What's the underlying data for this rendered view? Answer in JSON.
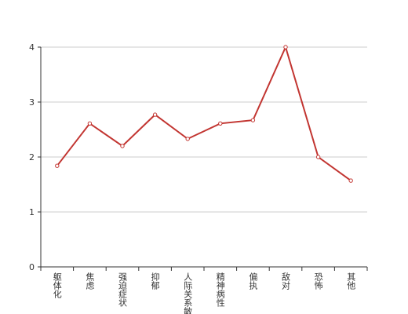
{
  "chart_data": {
    "type": "line",
    "categories": [
      "躯体化",
      "焦虑",
      "强迫症状",
      "抑郁",
      "人际关系敏感",
      "精神病性",
      "偏执",
      "敌对",
      "恐怖",
      "其他"
    ],
    "series": [
      {
        "color": "#c23531",
        "values": [
          1.84,
          2.61,
          2.2,
          2.77,
          2.33,
          2.61,
          2.67,
          4.0,
          2.0,
          1.57
        ]
      }
    ],
    "ylim": [
      0,
      4
    ],
    "yticks": [
      0,
      1,
      2,
      3,
      4
    ],
    "grid": true
  }
}
